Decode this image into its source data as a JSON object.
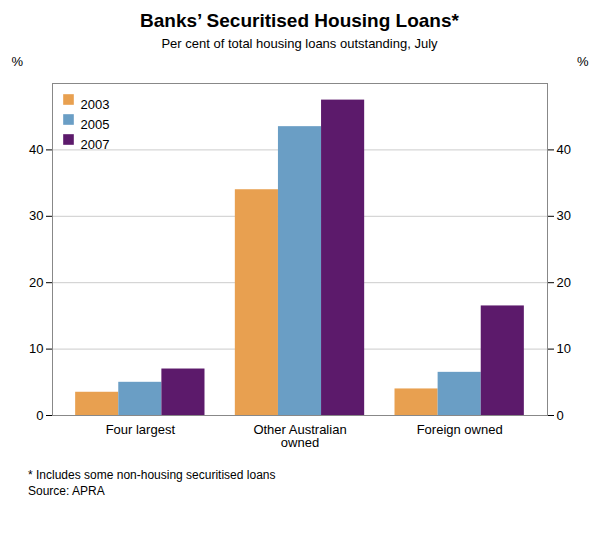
{
  "chart_data": {
    "type": "bar",
    "title": "Banks’ Securitised Housing Loans*",
    "subtitle": "Per cent of total housing loans outstanding, July",
    "categories": [
      "Four largest",
      "Other Australian\nowned",
      "Foreign owned"
    ],
    "series": [
      {
        "name": "2003",
        "color": "#E8A050",
        "values": [
          3.5,
          34.0,
          4.0
        ]
      },
      {
        "name": "2005",
        "color": "#6A9EC5",
        "values": [
          5.0,
          43.5,
          6.5
        ]
      },
      {
        "name": "2007",
        "color": "#5C1A6B",
        "values": [
          7.0,
          47.5,
          16.5
        ]
      }
    ],
    "ylim": [
      0,
      50
    ],
    "yticks": [
      0,
      10,
      20,
      30,
      40
    ],
    "y2lim": [
      0,
      50
    ],
    "y2ticks": [
      0,
      10,
      20,
      30,
      40
    ],
    "ylabel": "%",
    "y2label": "%",
    "footnote": "*  Includes some non-housing securitised loans\nSource: APRA",
    "grid": true,
    "legend": "upper left"
  }
}
